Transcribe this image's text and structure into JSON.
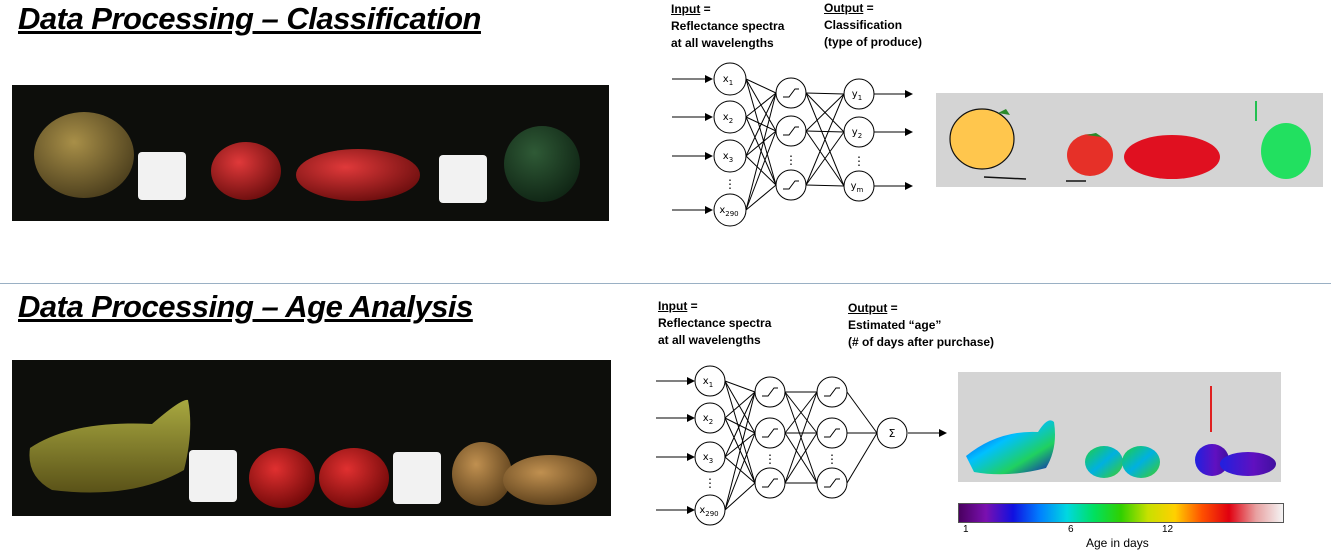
{
  "section_top": {
    "title": "Data Processing – Classification",
    "input_heading": "Input",
    "input_eq": " =",
    "input_line1": "Reflectance spectra",
    "input_line2": "at all wavelengths",
    "output_heading": "Output",
    "output_eq": " =",
    "output_line1": "Classification",
    "output_line2": "(type of produce)",
    "network": {
      "inputs": [
        "x",
        "x",
        "x",
        "x"
      ],
      "input_subs": [
        "1",
        "2",
        "3",
        "290"
      ],
      "outputs": [
        "y",
        "y",
        "y"
      ],
      "output_subs": [
        "1",
        "2",
        "m"
      ],
      "ellipsis": "⋮"
    }
  },
  "section_bottom": {
    "title": "Data Processing – Age Analysis",
    "input_heading": "Input",
    "input_eq": " =",
    "input_line1": "Reflectance spectra",
    "input_line2": "at all wavelengths",
    "output_heading": "Output",
    "output_eq": " =",
    "output_line1": "Estimated “age”",
    "output_line2": "(# of days after purchase)",
    "network": {
      "inputs": [
        "x",
        "x",
        "x",
        "x"
      ],
      "input_subs": [
        "1",
        "2",
        "3",
        "290"
      ],
      "sum_symbol": "Σ",
      "ellipsis": "⋮"
    },
    "colorbar": {
      "ticks": [
        "1",
        "6",
        "12"
      ],
      "label": "Age in days",
      "colors": [
        "#4a0060",
        "#7a10b0",
        "#1010e0",
        "#0080ff",
        "#00d8e0",
        "#00e060",
        "#30d000",
        "#c8e000",
        "#ffd000",
        "#ff5000",
        "#e00010",
        "#e8a0a0",
        "#f4f4f4"
      ]
    }
  },
  "colors": {
    "pepper_yellow": "#ffc64d",
    "pepper_red": "#e0252a",
    "pepper_green": "#22e060",
    "classification_bg": "#d4d4d4"
  }
}
